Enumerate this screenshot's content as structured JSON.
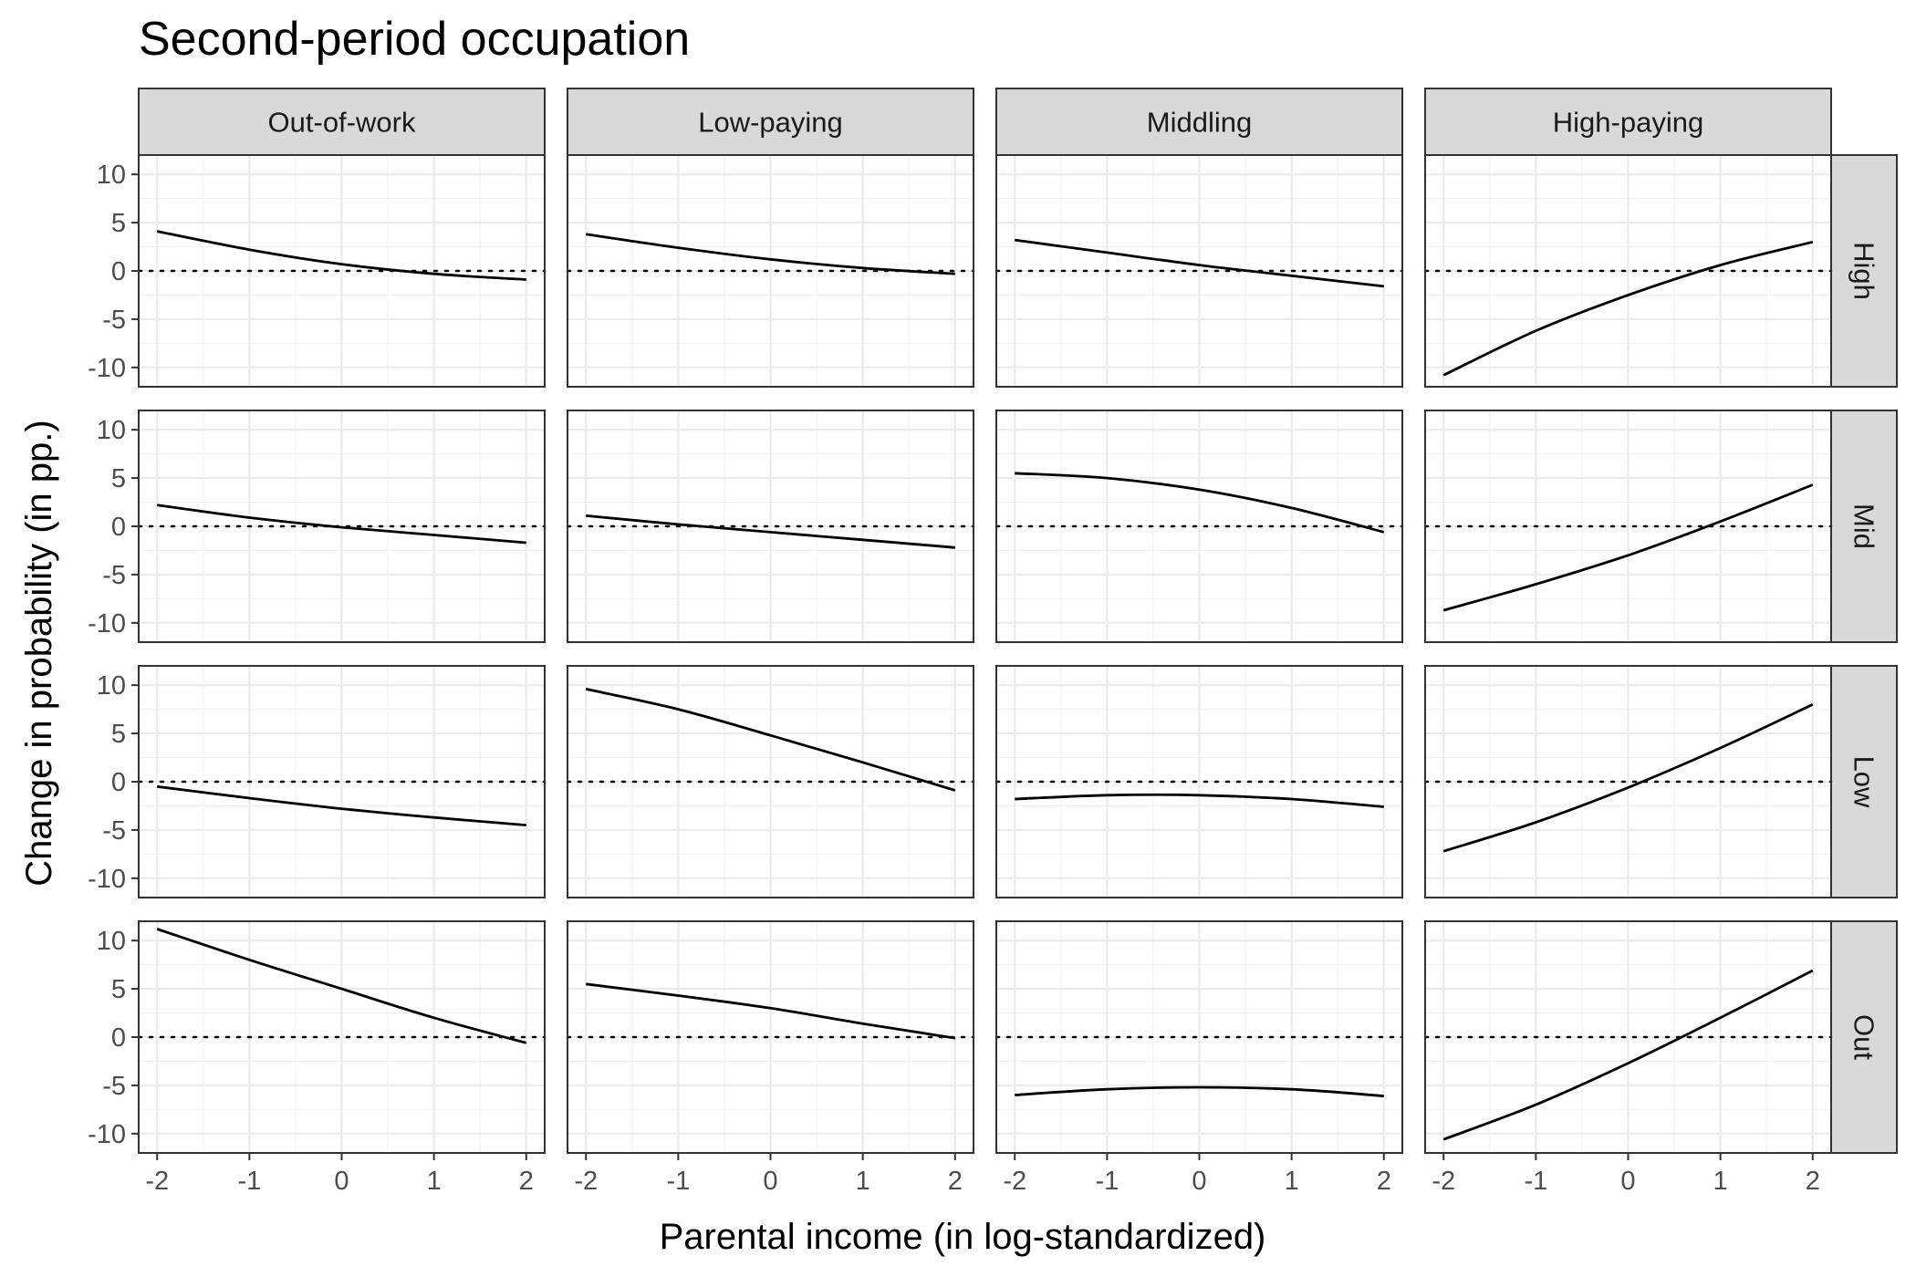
{
  "chart_data": {
    "type": "line",
    "title": "Second-period occupation",
    "xlabel": "Parental income (in log-standardized)",
    "ylabel": "Change in probability (in pp.)",
    "xlim": [
      -2.2,
      2.2
    ],
    "ylim": [
      -12,
      12
    ],
    "x_ticks": [
      "-2",
      "-1",
      "0",
      "1",
      "2"
    ],
    "y_ticks": [
      "10",
      "5",
      "0",
      "-5",
      "-10"
    ],
    "x_tick_values": [
      -2,
      -1,
      0,
      1,
      2
    ],
    "y_tick_values": [
      10,
      5,
      0,
      -5,
      -10
    ],
    "grid": true,
    "reference_line": 0,
    "x": [
      -2,
      -1,
      0,
      1,
      2
    ],
    "columns": [
      "Out-of-work",
      "Low-paying",
      "Middling",
      "High-paying"
    ],
    "rows": [
      "High",
      "Mid",
      "Low",
      "Out"
    ],
    "panels": [
      {
        "row": "High",
        "col": "Out-of-work",
        "values": [
          4.1,
          2.2,
          0.7,
          -0.3,
          -0.9
        ]
      },
      {
        "row": "High",
        "col": "Low-paying",
        "values": [
          3.8,
          2.4,
          1.2,
          0.3,
          -0.3
        ]
      },
      {
        "row": "High",
        "col": "Middling",
        "values": [
          3.2,
          1.9,
          0.6,
          -0.5,
          -1.6
        ]
      },
      {
        "row": "High",
        "col": "High-paying",
        "values": [
          -10.8,
          -6.2,
          -2.5,
          0.6,
          3.0
        ]
      },
      {
        "row": "Mid",
        "col": "Out-of-work",
        "values": [
          2.2,
          0.9,
          -0.1,
          -0.9,
          -1.7
        ]
      },
      {
        "row": "Mid",
        "col": "Low-paying",
        "values": [
          1.1,
          0.2,
          -0.6,
          -1.4,
          -2.2
        ]
      },
      {
        "row": "Mid",
        "col": "Middling",
        "values": [
          5.5,
          5.0,
          3.8,
          1.9,
          -0.6
        ]
      },
      {
        "row": "Mid",
        "col": "High-paying",
        "values": [
          -8.7,
          -6.0,
          -3.0,
          0.5,
          4.3
        ]
      },
      {
        "row": "Low",
        "col": "Out-of-work",
        "values": [
          -0.5,
          -1.7,
          -2.8,
          -3.7,
          -4.5
        ]
      },
      {
        "row": "Low",
        "col": "Low-paying",
        "values": [
          9.6,
          7.5,
          4.8,
          2.0,
          -0.9
        ]
      },
      {
        "row": "Low",
        "col": "Middling",
        "values": [
          -1.8,
          -1.4,
          -1.4,
          -1.8,
          -2.6
        ]
      },
      {
        "row": "Low",
        "col": "High-paying",
        "values": [
          -7.2,
          -4.2,
          -0.6,
          3.5,
          8.0
        ]
      },
      {
        "row": "Out",
        "col": "Out-of-work",
        "values": [
          11.2,
          8.0,
          5.0,
          2.0,
          -0.6
        ]
      },
      {
        "row": "Out",
        "col": "Low-paying",
        "values": [
          5.5,
          4.3,
          3.0,
          1.4,
          -0.1
        ]
      },
      {
        "row": "Out",
        "col": "Middling",
        "values": [
          -6.0,
          -5.4,
          -5.2,
          -5.4,
          -6.1
        ]
      },
      {
        "row": "Out",
        "col": "High-paying",
        "values": [
          -10.6,
          -7.0,
          -2.7,
          2.0,
          6.9
        ]
      }
    ]
  }
}
